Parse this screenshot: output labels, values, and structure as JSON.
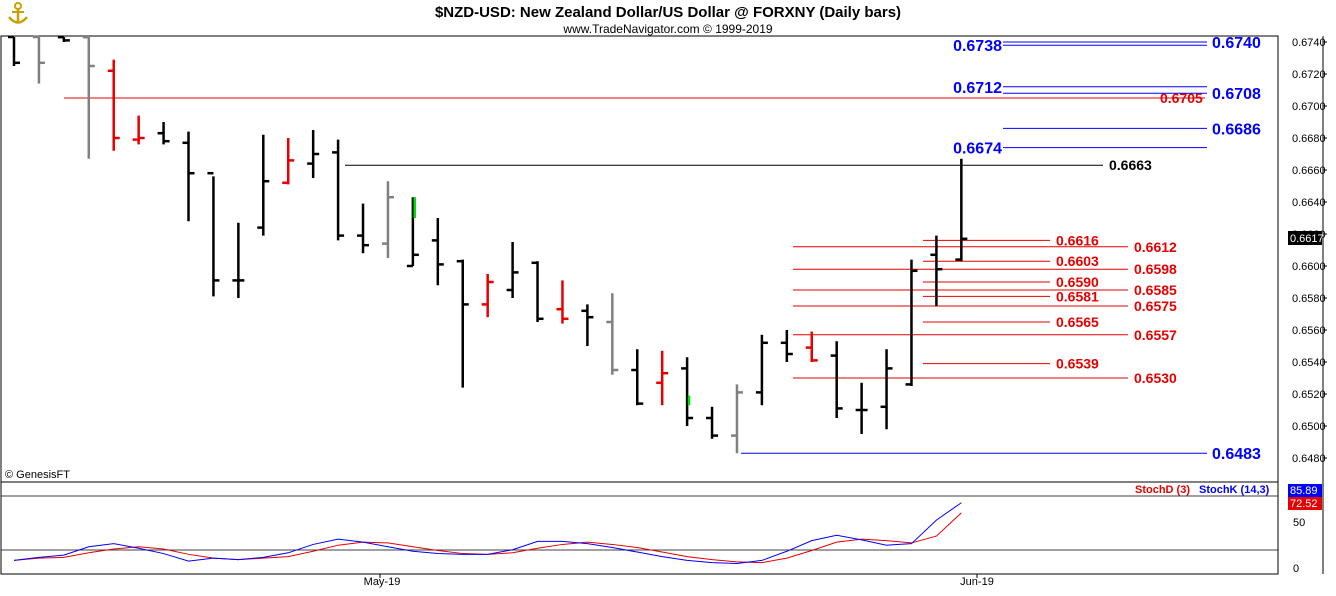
{
  "header": {
    "title": "$NZD-USD:  New Zealand Dollar/US Dollar @ FORXNY  (Daily bars)",
    "subtitle": "www.TradeNavigator.com © 1999-2019",
    "watermark": "© GenesisFT",
    "logo_icon": "anchor-icon"
  },
  "price_axis": {
    "ticks": [
      "0.6740",
      "0.6720",
      "0.6700",
      "0.6680",
      "0.6660",
      "0.6640",
      "0.6620",
      "0.6600",
      "0.6580",
      "0.6560",
      "0.6540",
      "0.6520",
      "0.6500",
      "0.6480"
    ],
    "last_price": "0.6617"
  },
  "levels": {
    "blue": [
      {
        "price": 0.674,
        "label": "0.6740"
      },
      {
        "price": 0.6738,
        "label": "0.6738"
      },
      {
        "price": 0.6712,
        "label": "0.6712"
      },
      {
        "price": 0.6708,
        "label": "0.6708"
      },
      {
        "price": 0.6686,
        "label": "0.6686"
      },
      {
        "price": 0.6674,
        "label": "0.6674"
      },
      {
        "price": 0.6483,
        "label": "0.6483"
      }
    ],
    "red": [
      {
        "price": 0.6705,
        "label": "0.6705"
      },
      {
        "price": 0.6616,
        "label": "0.6616"
      },
      {
        "price": 0.6612,
        "label": "0.6612"
      },
      {
        "price": 0.6603,
        "label": "0.6603"
      },
      {
        "price": 0.6598,
        "label": "0.6598"
      },
      {
        "price": 0.659,
        "label": "0.6590"
      },
      {
        "price": 0.6585,
        "label": "0.6585"
      },
      {
        "price": 0.6581,
        "label": "0.6581"
      },
      {
        "price": 0.6575,
        "label": "0.6575"
      },
      {
        "price": 0.6565,
        "label": "0.6565"
      },
      {
        "price": 0.6557,
        "label": "0.6557"
      },
      {
        "price": 0.6539,
        "label": "0.6539"
      },
      {
        "price": 0.653,
        "label": "0.6530"
      }
    ],
    "black": [
      {
        "price": 0.6663,
        "label": "0.6663"
      }
    ]
  },
  "stoch": {
    "legend_d": "StochD (3)",
    "legend_k": "StochK (14,3)",
    "value_k": "85.89",
    "value_d": "72.52",
    "ticks": [
      "50",
      "0"
    ]
  },
  "x_axis": {
    "labels": [
      "May-19",
      "Jun-19"
    ]
  },
  "chart_data": {
    "type": "ohlc",
    "title": "$NZD-USD:  New Zealand Dollar/US Dollar @ FORXNY  (Daily bars)",
    "y_range": [
      0.6475,
      0.6745
    ],
    "bars": [
      {
        "o": 0.6748,
        "h": 0.676,
        "l": 0.6725,
        "c": 0.6727,
        "color": "#000000"
      },
      {
        "o": 0.6746,
        "h": 0.676,
        "l": 0.6714,
        "c": 0.6727,
        "color": "#808080"
      },
      {
        "o": 0.6743,
        "h": 0.6762,
        "l": 0.674,
        "c": 0.6741,
        "color": "#000000"
      },
      {
        "o": 0.6743,
        "h": 0.676,
        "l": 0.6667,
        "c": 0.6725,
        "color": "#808080"
      },
      {
        "o": 0.6722,
        "h": 0.6729,
        "l": 0.6672,
        "c": 0.668,
        "color": "#e60000"
      },
      {
        "o": 0.6679,
        "h": 0.6694,
        "l": 0.6676,
        "c": 0.668,
        "color": "#e60000"
      },
      {
        "o": 0.6683,
        "h": 0.669,
        "l": 0.6676,
        "c": 0.6678,
        "color": "#000000"
      },
      {
        "o": 0.6677,
        "h": 0.6684,
        "l": 0.6628,
        "c": 0.6658,
        "color": "#000000"
      },
      {
        "o": 0.6658,
        "h": 0.6656,
        "l": 0.6581,
        "c": 0.6591,
        "color": "#000000"
      },
      {
        "o": 0.6591,
        "h": 0.6627,
        "l": 0.658,
        "c": 0.6591,
        "color": "#000000"
      },
      {
        "o": 0.6624,
        "h": 0.6682,
        "l": 0.6619,
        "c": 0.6653,
        "color": "#000000"
      },
      {
        "o": 0.6652,
        "h": 0.668,
        "l": 0.6651,
        "c": 0.6666,
        "color": "#e60000"
      },
      {
        "o": 0.6664,
        "h": 0.6685,
        "l": 0.6655,
        "c": 0.667,
        "color": "#000000"
      },
      {
        "o": 0.6671,
        "h": 0.6679,
        "l": 0.6616,
        "c": 0.6619,
        "color": "#000000"
      },
      {
        "o": 0.6619,
        "h": 0.6639,
        "l": 0.6608,
        "c": 0.6613,
        "color": "#000000"
      },
      {
        "o": 0.6614,
        "h": 0.6653,
        "l": 0.6605,
        "c": 0.6643,
        "color": "#808080"
      },
      {
        "o": 0.66,
        "h": 0.6643,
        "l": 0.66,
        "c": 0.6607,
        "color": "#000000"
      },
      {
        "o": 0.6616,
        "h": 0.663,
        "l": 0.6588,
        "c": 0.6601,
        "color": "#000000"
      },
      {
        "o": 0.6603,
        "h": 0.6604,
        "l": 0.6524,
        "c": 0.6576,
        "color": "#000000"
      },
      {
        "o": 0.6576,
        "h": 0.6595,
        "l": 0.6568,
        "c": 0.659,
        "color": "#e60000"
      },
      {
        "o": 0.6585,
        "h": 0.6615,
        "l": 0.658,
        "c": 0.6596,
        "color": "#000000"
      },
      {
        "o": 0.6602,
        "h": 0.6603,
        "l": 0.6565,
        "c": 0.6567,
        "color": "#000000"
      },
      {
        "o": 0.6573,
        "h": 0.6591,
        "l": 0.6564,
        "c": 0.6567,
        "color": "#e60000"
      },
      {
        "o": 0.6572,
        "h": 0.6576,
        "l": 0.655,
        "c": 0.6568,
        "color": "#000000"
      },
      {
        "o": 0.6565,
        "h": 0.6583,
        "l": 0.6532,
        "c": 0.6535,
        "color": "#808080"
      },
      {
        "o": 0.6535,
        "h": 0.6548,
        "l": 0.6513,
        "c": 0.6514,
        "color": "#000000"
      },
      {
        "o": 0.6527,
        "h": 0.6547,
        "l": 0.6513,
        "c": 0.6533,
        "color": "#e60000"
      },
      {
        "o": 0.6536,
        "h": 0.6543,
        "l": 0.65,
        "c": 0.6505,
        "color": "#000000"
      },
      {
        "o": 0.6505,
        "h": 0.6512,
        "l": 0.6492,
        "c": 0.6494,
        "color": "#000000"
      },
      {
        "o": 0.6494,
        "h": 0.6526,
        "l": 0.6483,
        "c": 0.6521,
        "color": "#808080"
      },
      {
        "o": 0.6521,
        "h": 0.6557,
        "l": 0.6513,
        "c": 0.6552,
        "color": "#000000"
      },
      {
        "o": 0.6552,
        "h": 0.656,
        "l": 0.654,
        "c": 0.6545,
        "color": "#000000"
      },
      {
        "o": 0.6549,
        "h": 0.6559,
        "l": 0.654,
        "c": 0.6541,
        "color": "#e60000"
      },
      {
        "o": 0.6544,
        "h": 0.6553,
        "l": 0.6505,
        "c": 0.6511,
        "color": "#000000"
      },
      {
        "o": 0.651,
        "h": 0.6527,
        "l": 0.6495,
        "c": 0.651,
        "color": "#000000"
      },
      {
        "o": 0.6512,
        "h": 0.6548,
        "l": 0.6498,
        "c": 0.6536,
        "color": "#000000"
      },
      {
        "o": 0.6526,
        "h": 0.6604,
        "l": 0.6525,
        "c": 0.6597,
        "color": "#000000"
      },
      {
        "o": 0.6607,
        "h": 0.6619,
        "l": 0.6575,
        "c": 0.6598,
        "color": "#000000"
      },
      {
        "o": 0.6604,
        "h": 0.6667,
        "l": 0.6603,
        "c": 0.6617,
        "color": "#000000"
      }
    ],
    "stoch_k": [
      10,
      14,
      17,
      28,
      32,
      26,
      19,
      9,
      13,
      11,
      14,
      20,
      31,
      38,
      34,
      28,
      22,
      19,
      18,
      18,
      24,
      35,
      35,
      32,
      27,
      21,
      15,
      10,
      7,
      6,
      10,
      22,
      36,
      43,
      37,
      30,
      32,
      63,
      85.89
    ],
    "stoch_d": [
      10,
      13,
      14,
      20,
      25,
      28,
      25,
      18,
      13,
      11,
      13,
      15,
      22,
      30,
      34,
      33,
      28,
      23,
      19,
      18,
      20,
      26,
      31,
      34,
      31,
      27,
      21,
      15,
      11,
      8,
      7,
      13,
      23,
      34,
      38,
      36,
      33,
      42,
      72.52
    ]
  }
}
